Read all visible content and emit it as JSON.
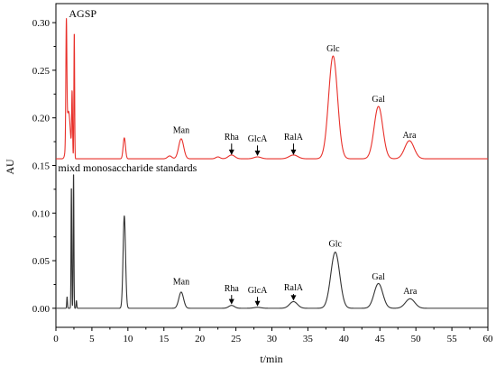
{
  "chart_data": {
    "type": "line",
    "xlabel": "t/min",
    "ylabel": "AU",
    "xlim": [
      0,
      60
    ],
    "ylim": [
      -0.02,
      0.32
    ],
    "x_ticks": [
      "0",
      "5",
      "10",
      "15",
      "20",
      "25",
      "30",
      "35",
      "40",
      "45",
      "50",
      "55",
      "60"
    ],
    "y_ticks": [
      "0.00",
      "0.05",
      "0.10",
      "0.15",
      "0.20",
      "0.25",
      "0.30"
    ],
    "series": [
      {
        "name": "AGSP",
        "color": "#e8302a",
        "baseline": 0.157,
        "peaks": [
          {
            "t": 1.45,
            "h": 0.123,
            "w": 0.07
          },
          {
            "t": 1.75,
            "h": 0.05,
            "w": 0.25
          },
          {
            "t": 2.25,
            "h": 0.065,
            "w": 0.06
          },
          {
            "t": 2.55,
            "h": 0.133,
            "w": 0.05
          },
          {
            "t": 9.5,
            "h": 0.022,
            "w": 0.16
          },
          {
            "t": 15.8,
            "h": 0.003,
            "w": 0.3
          },
          {
            "t": 17.4,
            "h": 0.021,
            "w": 0.35
          },
          {
            "t": 22.5,
            "h": 0.002,
            "w": 0.3
          },
          {
            "t": 24.4,
            "h": 0.004,
            "w": 0.45
          },
          {
            "t": 28.0,
            "h": 0.002,
            "w": 0.5
          },
          {
            "t": 33.0,
            "h": 0.004,
            "w": 0.6
          },
          {
            "t": 38.5,
            "h": 0.108,
            "w": 0.62
          },
          {
            "t": 44.8,
            "h": 0.055,
            "w": 0.6
          },
          {
            "t": 49.1,
            "h": 0.019,
            "w": 0.65
          }
        ]
      },
      {
        "name": "mixd monosaccharide standards",
        "color": "#333333",
        "baseline": 0.0,
        "peaks": [
          {
            "t": 1.55,
            "h": 0.012,
            "w": 0.05
          },
          {
            "t": 2.15,
            "h": 0.128,
            "w": 0.05
          },
          {
            "t": 2.45,
            "h": 0.143,
            "w": 0.05
          },
          {
            "t": 2.85,
            "h": 0.008,
            "w": 0.05
          },
          {
            "t": 9.5,
            "h": 0.097,
            "w": 0.17
          },
          {
            "t": 17.4,
            "h": 0.017,
            "w": 0.33
          },
          {
            "t": 24.4,
            "h": 0.003,
            "w": 0.4
          },
          {
            "t": 28.0,
            "h": 0.001,
            "w": 0.5
          },
          {
            "t": 33.0,
            "h": 0.007,
            "w": 0.55
          },
          {
            "t": 38.8,
            "h": 0.059,
            "w": 0.62
          },
          {
            "t": 44.8,
            "h": 0.026,
            "w": 0.6
          },
          {
            "t": 49.2,
            "h": 0.01,
            "w": 0.65
          }
        ]
      }
    ],
    "trace_labels": [
      {
        "text": "AGSP",
        "x": 1.8,
        "y": 0.306
      },
      {
        "text": "mixd monosaccharide standards",
        "x": 0.3,
        "y": 0.144
      }
    ],
    "peak_labels": [
      {
        "text": "Man",
        "x": 17.4,
        "y": 0.184
      },
      {
        "text": "Rha",
        "x": 24.4,
        "y": 0.177,
        "arrow": [
          24.4,
          0.173,
          0.161
        ]
      },
      {
        "text": "GlcA",
        "x": 28.0,
        "y": 0.175,
        "arrow": [
          28.0,
          0.171,
          0.16
        ]
      },
      {
        "text": "RalA",
        "x": 33.0,
        "y": 0.177,
        "arrow": [
          33.0,
          0.173,
          0.161
        ]
      },
      {
        "text": "Glc",
        "x": 38.5,
        "y": 0.27
      },
      {
        "text": "Gal",
        "x": 44.8,
        "y": 0.217
      },
      {
        "text": "Ara",
        "x": 49.1,
        "y": 0.179
      },
      {
        "text": "Man",
        "x": 17.4,
        "y": 0.025
      },
      {
        "text": "Rha",
        "x": 24.4,
        "y": 0.018,
        "arrow": [
          24.4,
          0.014,
          0.004
        ]
      },
      {
        "text": "GlcA",
        "x": 28.0,
        "y": 0.016,
        "arrow": [
          28.0,
          0.012,
          0.002
        ]
      },
      {
        "text": "RalA",
        "x": 33.0,
        "y": 0.019,
        "arrow": [
          33.0,
          0.015,
          0.008
        ]
      },
      {
        "text": "Glc",
        "x": 38.8,
        "y": 0.065
      },
      {
        "text": "Gal",
        "x": 44.8,
        "y": 0.03
      },
      {
        "text": "Ara",
        "x": 49.2,
        "y": 0.015
      }
    ]
  }
}
